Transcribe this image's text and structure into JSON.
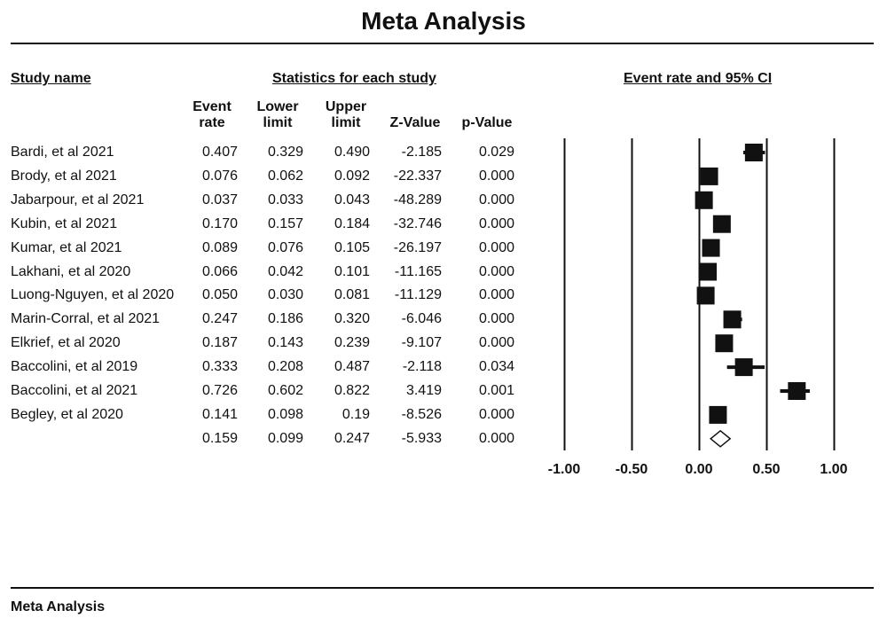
{
  "title": "Meta Analysis",
  "footer": "Meta Analysis",
  "headers": {
    "study": "Study name",
    "stats": "Statistics for each study",
    "plot": "Event rate and 95% CI"
  },
  "columns": {
    "event_rate": "Event rate",
    "event_rate_l1": "Event",
    "event_rate_l2": "rate",
    "lower_l1": "Lower",
    "lower_l2": "limit",
    "upper_l1": "Upper",
    "upper_l2": "limit",
    "z": "Z-Value",
    "p": "p-Value"
  },
  "chart_data": {
    "type": "forest",
    "title": "Meta Analysis",
    "x_ticks": [
      "-1.00",
      "-0.50",
      "0.00",
      "0.50",
      "1.00"
    ],
    "xlim": [
      -1,
      1
    ],
    "studies": [
      {
        "name": "Bardi, et al 2021",
        "rate": "0.407",
        "lower": "0.329",
        "upper": "0.490",
        "z": "-2.185",
        "p": "0.029"
      },
      {
        "name": "Brody, et al 2021",
        "rate": "0.076",
        "lower": "0.062",
        "upper": "0.092",
        "z": "-22.337",
        "p": "0.000"
      },
      {
        "name": "Jabarpour, et al 2021",
        "rate": "0.037",
        "lower": "0.033",
        "upper": "0.043",
        "z": "-48.289",
        "p": "0.000"
      },
      {
        "name": "Kubin, et al 2021",
        "rate": "0.170",
        "lower": "0.157",
        "upper": "0.184",
        "z": "-32.746",
        "p": "0.000"
      },
      {
        "name": "Kumar, et al 2021",
        "rate": "0.089",
        "lower": "0.076",
        "upper": "0.105",
        "z": "-26.197",
        "p": "0.000"
      },
      {
        "name": "Lakhani, et al 2020",
        "rate": "0.066",
        "lower": "0.042",
        "upper": "0.101",
        "z": "-11.165",
        "p": "0.000"
      },
      {
        "name": "Luong-Nguyen, et al 2020",
        "rate": "0.050",
        "lower": "0.030",
        "upper": "0.081",
        "z": "-11.129",
        "p": "0.000"
      },
      {
        "name": "Marin-Corral, et al 2021",
        "rate": "0.247",
        "lower": "0.186",
        "upper": "0.320",
        "z": "-6.046",
        "p": "0.000"
      },
      {
        "name": "Elkrief, et al 2020",
        "rate": "0.187",
        "lower": "0.143",
        "upper": "0.239",
        "z": "-9.107",
        "p": "0.000"
      },
      {
        "name": "Baccolini, et al 2019",
        "rate": "0.333",
        "lower": "0.208",
        "upper": "0.487",
        "z": "-2.118",
        "p": "0.034"
      },
      {
        "name": "Baccolini, et al 2021",
        "rate": "0.726",
        "lower": "0.602",
        "upper": "0.822",
        "z": "3.419",
        "p": "0.001"
      },
      {
        "name": "Begley, et al 2020",
        "rate": "0.141",
        "lower": "0.098",
        "upper": "0.19",
        "z": "-8.526",
        "p": "0.000"
      }
    ],
    "summary": {
      "name": "",
      "rate": "0.159",
      "lower": "0.099",
      "upper": "0.247",
      "z": "-5.933",
      "p": "0.000"
    }
  }
}
